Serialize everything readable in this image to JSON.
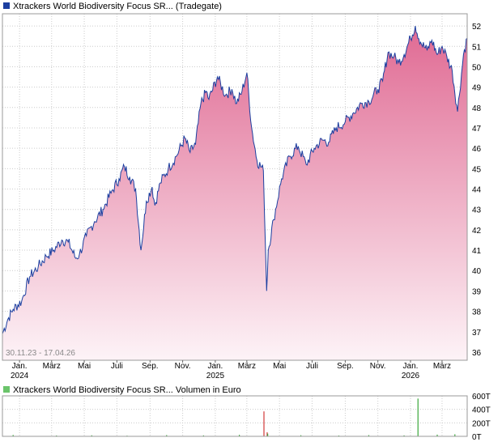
{
  "colors": {
    "price_line": "#1c3fa0",
    "fill_top": "#e06a93",
    "fill_bottom": "#fdf3f7",
    "grid": "#cccccc",
    "volume_up": "#3aa83a",
    "volume_down": "#d23a3a",
    "legend_price": "#1c3fa0",
    "legend_volume": "#6bc46b"
  },
  "chart_data": [
    {
      "type": "area",
      "title": "Xtrackers World Biodiversity Focus SR... (Tradegate)",
      "date_range_label": "30.11.23 - 17.04.26",
      "x_range": [
        "2023-11-30",
        "2026-04-17"
      ],
      "ylim": [
        35.6,
        52.6
      ],
      "y_ticks": [
        36,
        37,
        38,
        39,
        40,
        41,
        42,
        43,
        44,
        45,
        46,
        47,
        48,
        49,
        50,
        51,
        52
      ],
      "x_ticks": [
        {
          "label": "Jan.",
          "year": "2024",
          "date": "2024-01-01"
        },
        {
          "label": "März",
          "year": "",
          "date": "2024-03-01"
        },
        {
          "label": "Mai",
          "year": "",
          "date": "2024-05-01"
        },
        {
          "label": "Juli",
          "year": "",
          "date": "2024-07-01"
        },
        {
          "label": "Sep.",
          "year": "",
          "date": "2024-09-01"
        },
        {
          "label": "Nov.",
          "year": "",
          "date": "2024-11-01"
        },
        {
          "label": "Jan.",
          "year": "2025",
          "date": "2025-01-01"
        },
        {
          "label": "März",
          "year": "",
          "date": "2025-03-01"
        },
        {
          "label": "Mai",
          "year": "",
          "date": "2025-05-01"
        },
        {
          "label": "Juli",
          "year": "",
          "date": "2025-07-01"
        },
        {
          "label": "Sep.",
          "year": "",
          "date": "2025-09-01"
        },
        {
          "label": "Nov.",
          "year": "",
          "date": "2025-11-01"
        },
        {
          "label": "Jan.",
          "year": "2026",
          "date": "2026-01-01"
        },
        {
          "label": "März",
          "year": "",
          "date": "2026-03-01"
        }
      ],
      "grid": true,
      "series": [
        {
          "x": [
            "2023-11-30",
            "2023-12-10",
            "2023-12-20",
            "2024-01-05",
            "2024-01-20",
            "2024-02-05",
            "2024-02-20",
            "2024-03-05",
            "2024-03-20",
            "2024-04-01",
            "2024-04-15",
            "2024-04-22",
            "2024-05-05",
            "2024-05-20",
            "2024-06-05",
            "2024-06-20",
            "2024-07-05",
            "2024-07-15",
            "2024-07-25",
            "2024-08-05",
            "2024-08-15",
            "2024-08-25",
            "2024-09-05",
            "2024-09-10",
            "2024-09-20",
            "2024-10-05",
            "2024-10-20",
            "2024-11-05",
            "2024-11-15",
            "2024-11-25",
            "2024-12-05",
            "2024-12-15",
            "2024-12-20",
            "2025-01-05",
            "2025-01-20",
            "2025-02-01",
            "2025-02-10",
            "2025-02-20",
            "2025-03-01",
            "2025-03-10",
            "2025-03-20",
            "2025-04-01",
            "2025-04-07",
            "2025-04-10",
            "2025-04-20",
            "2025-05-05",
            "2025-05-20",
            "2025-06-05",
            "2025-06-20",
            "2025-07-05",
            "2025-07-20",
            "2025-08-01",
            "2025-08-15",
            "2025-09-01",
            "2025-09-15",
            "2025-10-01",
            "2025-10-15",
            "2025-11-01",
            "2025-11-10",
            "2025-11-20",
            "2025-12-01",
            "2025-12-10",
            "2025-12-20",
            "2026-01-01",
            "2026-01-10",
            "2026-01-20",
            "2026-02-01",
            "2026-02-10",
            "2026-02-20",
            "2026-03-01",
            "2026-03-10",
            "2026-03-20",
            "2026-03-30",
            "2026-04-10",
            "2026-04-17"
          ],
          "values": [
            36.9,
            37.6,
            38.1,
            38.5,
            39.7,
            40.2,
            40.7,
            41.0,
            41.5,
            41.4,
            40.6,
            40.8,
            41.7,
            42.4,
            43.0,
            43.8,
            44.5,
            45.1,
            44.6,
            44.0,
            41.0,
            43.4,
            44.1,
            43.2,
            44.3,
            45.0,
            45.6,
            46.5,
            45.8,
            46.2,
            48.2,
            48.8,
            48.4,
            49.5,
            48.6,
            48.9,
            48.2,
            48.8,
            49.7,
            47.0,
            45.4,
            44.9,
            39.0,
            41.0,
            42.5,
            44.5,
            45.6,
            46.1,
            45.2,
            46.0,
            46.4,
            46.3,
            47.0,
            47.3,
            47.7,
            48.2,
            48.3,
            48.9,
            49.3,
            50.7,
            50.5,
            50.2,
            50.6,
            51.4,
            52.0,
            51.2,
            50.8,
            51.3,
            50.6,
            51.0,
            50.5,
            49.8,
            47.8,
            50.6,
            51.4
          ]
        }
      ]
    },
    {
      "type": "bar",
      "title": "Xtrackers World Biodiversity Focus SR... Volumen in Euro",
      "ylim": [
        0,
        600
      ],
      "y_ticks": [
        "0T",
        "200T",
        "400T",
        "600T"
      ],
      "grid": true,
      "series": [
        {
          "name": "Volumen",
          "x": [
            "2023-12-20",
            "2024-03-10",
            "2024-05-15",
            "2024-07-20",
            "2024-10-02",
            "2024-12-10",
            "2025-02-15",
            "2025-04-02",
            "2025-04-08",
            "2025-04-09",
            "2025-06-10",
            "2025-08-20",
            "2025-10-15",
            "2025-12-20",
            "2026-01-15",
            "2026-02-20",
            "2026-03-25"
          ],
          "values": [
            20,
            12,
            15,
            10,
            18,
            14,
            22,
            370,
            60,
            40,
            16,
            12,
            18,
            14,
            560,
            25,
            30
          ]
        }
      ]
    }
  ]
}
